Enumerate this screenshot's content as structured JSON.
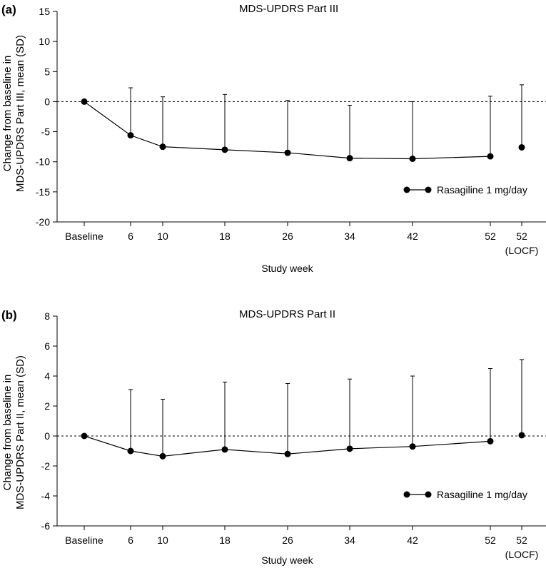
{
  "chart_data": [
    {
      "panel_label": "(a)",
      "type": "line",
      "title": "MDS-UPDRS Part III",
      "ylabel": [
        "Change from baseline in",
        "MDS-UPDRS Part III, mean (SD)"
      ],
      "xlabel": "Study week",
      "ylim": [
        -20,
        15
      ],
      "yticks": [
        15,
        10,
        5,
        0,
        -5,
        -10,
        -15,
        -20
      ],
      "categories": [
        {
          "line1": "Baseline",
          "line2": ""
        },
        {
          "line1": "6",
          "line2": ""
        },
        {
          "line1": "10",
          "line2": ""
        },
        {
          "line1": "18",
          "line2": ""
        },
        {
          "line1": "26",
          "line2": ""
        },
        {
          "line1": "34",
          "line2": ""
        },
        {
          "line1": "42",
          "line2": ""
        },
        {
          "line1": "52",
          "line2": ""
        },
        {
          "line1": "52",
          "line2": "(LOCF)"
        }
      ],
      "x": [
        0,
        6,
        10,
        18,
        26,
        34,
        42,
        52,
        55.5
      ],
      "series": [
        {
          "name": "Rasagiline 1 mg/day",
          "values": [
            0,
            -5.6,
            -7.5,
            -8.0,
            -8.5,
            -9.4,
            -9.5,
            -9.1,
            -7.6
          ],
          "upper_sd": [
            0,
            2.3,
            0.8,
            1.2,
            0.2,
            -0.6,
            0,
            0.9,
            2.8
          ],
          "connected": [
            true,
            true,
            true,
            true,
            true,
            true,
            true,
            true,
            false
          ]
        }
      ],
      "reference_line": 0,
      "legend": "Rasagiline 1 mg/day",
      "legend_position": "bottom-right"
    },
    {
      "panel_label": "(b)",
      "type": "line",
      "title": "MDS-UPDRS Part II",
      "ylabel": [
        "Change from baseline in",
        "MDS-UPDRS Part II, mean (SD)"
      ],
      "xlabel": "Study week",
      "ylim": [
        -6,
        8
      ],
      "yticks": [
        8,
        6,
        4,
        2,
        0,
        -2,
        -4,
        -6
      ],
      "categories": [
        {
          "line1": "Baseline",
          "line2": ""
        },
        {
          "line1": "6",
          "line2": ""
        },
        {
          "line1": "10",
          "line2": ""
        },
        {
          "line1": "18",
          "line2": ""
        },
        {
          "line1": "26",
          "line2": ""
        },
        {
          "line1": "34",
          "line2": ""
        },
        {
          "line1": "42",
          "line2": ""
        },
        {
          "line1": "52",
          "line2": ""
        },
        {
          "line1": "52",
          "line2": "(LOCF)"
        }
      ],
      "x": [
        0,
        6,
        10,
        18,
        26,
        34,
        42,
        52,
        55.5
      ],
      "series": [
        {
          "name": "Rasagiline 1 mg/day",
          "values": [
            0,
            -1.0,
            -1.35,
            -0.9,
            -1.2,
            -0.85,
            -0.7,
            -0.35,
            0.05
          ],
          "upper_sd": [
            0,
            3.1,
            2.45,
            3.6,
            3.5,
            3.8,
            4.0,
            4.5,
            5.1
          ],
          "connected": [
            true,
            true,
            true,
            true,
            true,
            true,
            true,
            true,
            false
          ]
        }
      ],
      "reference_line": 0,
      "legend": "Rasagiline 1 mg/day",
      "legend_position": "bottom-right"
    }
  ]
}
